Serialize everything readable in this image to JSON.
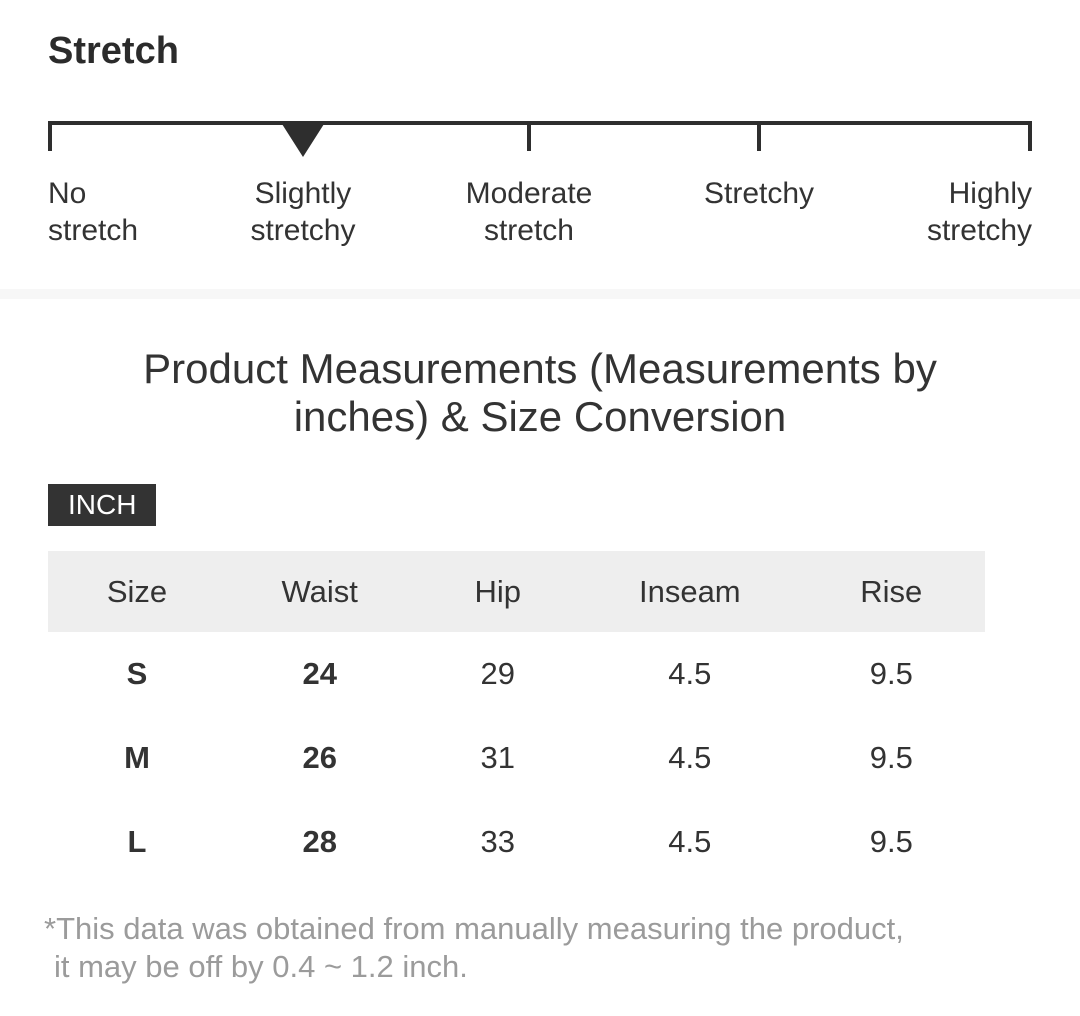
{
  "stretch": {
    "title": "Stretch",
    "selected_label": "Slightly stretchy",
    "selected_index": 1,
    "levels": [
      "No stretch",
      "Slightly stretchy",
      "Moderate stretch",
      "Stretchy",
      "Highly stretchy"
    ]
  },
  "measurements": {
    "title": "Product Measurements (Measurements by inches) & Size Conversion",
    "unit_badge": "INCH",
    "table": {
      "headers": [
        "Size",
        "Waist",
        "Hip",
        "Inseam",
        "Rise"
      ],
      "rows": [
        [
          "S",
          "24",
          "29",
          "4.5",
          "9.5"
        ],
        [
          "M",
          "26",
          "31",
          "4.5",
          "9.5"
        ],
        [
          "L",
          "28",
          "33",
          "4.5",
          "9.5"
        ]
      ]
    },
    "footnote": {
      "line1": "*This data was obtained from manually measuring the product,",
      "line2": "it may be off by 0.4 ~ 1.2 inch."
    }
  },
  "colors": {
    "heading_text": "#2b2b2b",
    "body_text": "#333333",
    "muted_text": "#9b9b9b",
    "table_header_bg": "#eeeeee",
    "badge_bg": "#333333",
    "badge_text": "#ffffff",
    "divider": "#f7f7f7",
    "scale": "#2e2e2e"
  }
}
